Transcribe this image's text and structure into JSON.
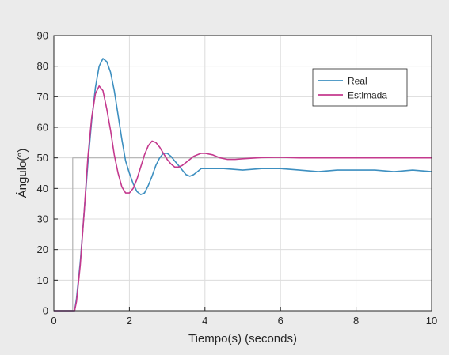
{
  "chart_data": {
    "type": "line",
    "xlabel": "Tiempo(s) (seconds)",
    "ylabel": "Ángulo(°)",
    "xlim": [
      0,
      10
    ],
    "ylim": [
      0,
      90
    ],
    "x_ticks": [
      "0",
      "2",
      "4",
      "6",
      "8",
      "10"
    ],
    "y_ticks": [
      "0",
      "10",
      "20",
      "30",
      "40",
      "50",
      "60",
      "70",
      "80",
      "90"
    ],
    "grid": true,
    "legend_position": "top-right",
    "series": [
      {
        "name": "Real",
        "color": "#3d8fc0",
        "x": [
          0,
          0.55,
          0.6,
          0.7,
          0.8,
          0.9,
          1.0,
          1.1,
          1.2,
          1.3,
          1.4,
          1.5,
          1.6,
          1.7,
          1.8,
          1.9,
          2.0,
          2.1,
          2.2,
          2.3,
          2.4,
          2.5,
          2.6,
          2.7,
          2.8,
          2.9,
          3.0,
          3.1,
          3.2,
          3.3,
          3.4,
          3.5,
          3.6,
          3.7,
          3.8,
          3.9,
          4.0,
          4.2,
          4.5,
          5.0,
          5.5,
          6.0,
          6.5,
          7.0,
          7.5,
          8.0,
          8.5,
          9.0,
          9.5,
          10.0
        ],
        "values": [
          0,
          0,
          4,
          16,
          32,
          48,
          62,
          73,
          80,
          82.5,
          81.5,
          78,
          72,
          64,
          56,
          49,
          45,
          41.5,
          39,
          38,
          38.5,
          41,
          44,
          47.5,
          50,
          51.5,
          51.5,
          50.5,
          49,
          47.5,
          46,
          44.5,
          44,
          44.5,
          45.5,
          46.5,
          46.5,
          46.5,
          46.5,
          46,
          46.5,
          46.5,
          46,
          45.5,
          46,
          46,
          46,
          45.5,
          46,
          45.5
        ]
      },
      {
        "name": "Estimada",
        "color": "#c4398e",
        "x": [
          0,
          0.55,
          0.6,
          0.7,
          0.8,
          0.9,
          1.0,
          1.1,
          1.2,
          1.3,
          1.4,
          1.5,
          1.6,
          1.7,
          1.8,
          1.9,
          2.0,
          2.1,
          2.2,
          2.3,
          2.4,
          2.5,
          2.6,
          2.7,
          2.8,
          2.9,
          3.0,
          3.1,
          3.2,
          3.3,
          3.4,
          3.5,
          3.6,
          3.7,
          3.8,
          3.9,
          4.0,
          4.2,
          4.4,
          4.6,
          4.8,
          5.0,
          5.5,
          6.0,
          6.5,
          7.0,
          8.0,
          9.0,
          10.0
        ],
        "values": [
          0,
          0,
          3,
          15,
          32,
          50,
          63,
          71,
          73.5,
          72,
          66,
          59,
          51,
          45,
          40.5,
          38.5,
          38.5,
          40,
          43,
          47,
          51,
          54,
          55.5,
          55,
          53.5,
          51.5,
          49.5,
          48,
          47,
          47,
          47.5,
          48.5,
          49.5,
          50.5,
          51,
          51.5,
          51.5,
          51,
          50,
          49.5,
          49.5,
          49.7,
          50.1,
          50.2,
          50,
          50,
          50,
          50,
          50
        ]
      },
      {
        "name": "",
        "color": "#b3b3b3",
        "x": [
          0,
          0.5,
          0.5,
          10
        ],
        "values": [
          0,
          0,
          50,
          50
        ]
      }
    ]
  }
}
